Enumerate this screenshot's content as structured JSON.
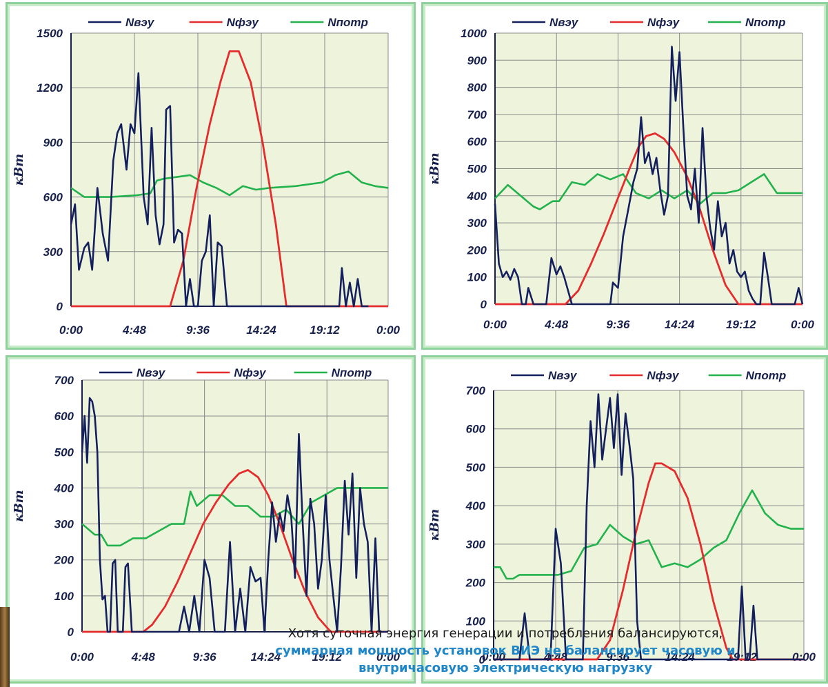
{
  "colors": {
    "nveu": "#14205e",
    "nfeu": "#e52b2b",
    "npotr": "#22b24c",
    "plot_bg": "#eef3dc",
    "grid": "#8a8a8a"
  },
  "legend": {
    "nveu": "Nвэу",
    "nfeu": "Nфэу",
    "npotr": "Nпотр"
  },
  "caption": {
    "line1": "Хотя суточная энергия генерации и потребления балансируются,",
    "line2": "суммарная мощность установок ВИЭ не балансирует часовую и",
    "line3": "внутричасовую электрическую нагрузку"
  },
  "chart_data": [
    {
      "type": "line",
      "ylabel": "кВт",
      "ylim": [
        0,
        1500
      ],
      "yticks": [
        "0",
        "300",
        "600",
        "900",
        "1200",
        "1500"
      ],
      "xlim": [
        0,
        24
      ],
      "xticks": [
        "0:00",
        "4:48",
        "9:36",
        "14:24",
        "19:12",
        "0:00"
      ],
      "grid": true,
      "legend_position": "top",
      "series": [
        {
          "name": "Nвэу",
          "x": [
            0,
            0.3,
            0.6,
            1,
            1.3,
            1.6,
            2,
            2.4,
            2.8,
            3.2,
            3.5,
            3.8,
            4.2,
            4.5,
            4.8,
            5.1,
            5.5,
            5.8,
            6.1,
            6.4,
            6.7,
            7,
            7.2,
            7.5,
            7.8,
            8.1,
            8.4,
            8.7,
            9,
            9.3,
            9.6,
            9.9,
            10.2,
            10.5,
            10.8,
            11.1,
            11.4,
            11.8,
            12.1,
            12.4,
            12.7,
            13,
            13.3,
            13.6,
            13.9,
            14.2,
            14.5,
            14.8,
            15.1,
            15.4,
            15.7,
            16,
            20.3,
            20.5,
            20.8,
            21.1,
            21.4,
            21.7,
            22,
            22.3,
            22.5
          ],
          "y": [
            450,
            560,
            200,
            320,
            350,
            200,
            650,
            400,
            250,
            800,
            950,
            1000,
            750,
            1000,
            950,
            1280,
            600,
            450,
            980,
            500,
            340,
            450,
            1080,
            1100,
            350,
            420,
            400,
            0,
            150,
            0,
            0,
            250,
            300,
            500,
            0,
            350,
            330,
            0,
            0,
            0,
            0,
            0,
            0,
            0,
            0,
            0,
            0,
            0,
            0,
            0,
            0,
            0,
            0,
            210,
            0,
            130,
            0,
            150,
            0,
            0,
            0
          ]
        },
        {
          "name": "Nфэу",
          "x": [
            0,
            7.5,
            8.5,
            9.5,
            10.5,
            11.3,
            12,
            12.7,
            13.6,
            14.5,
            15.5,
            16.3,
            17,
            24
          ],
          "y": [
            0,
            0,
            250,
            650,
            1000,
            1230,
            1400,
            1400,
            1230,
            900,
            450,
            0,
            0,
            0
          ]
        },
        {
          "name": "Nпотр",
          "x": [
            0,
            1,
            3,
            5,
            6,
            6.5,
            7,
            9,
            10,
            11,
            12,
            13,
            14,
            15,
            17,
            19,
            20,
            21,
            22,
            23,
            24
          ],
          "y": [
            650,
            600,
            600,
            610,
            620,
            690,
            700,
            720,
            680,
            650,
            610,
            660,
            640,
            650,
            660,
            680,
            720,
            740,
            680,
            660,
            650
          ]
        }
      ]
    },
    {
      "type": "line",
      "ylabel": "кВт",
      "ylim": [
        0,
        1000
      ],
      "yticks": [
        "0",
        "100",
        "200",
        "300",
        "400",
        "500",
        "600",
        "700",
        "800",
        "900",
        "1000"
      ],
      "xlim": [
        0,
        24
      ],
      "xticks": [
        "0:00",
        "4:48",
        "9:36",
        "14:24",
        "19:12",
        "0:00"
      ],
      "grid": true,
      "legend_position": "top",
      "series": [
        {
          "name": "Nвэу",
          "x": [
            0,
            0.3,
            0.6,
            0.9,
            1.2,
            1.5,
            1.8,
            2.1,
            2.4,
            2.6,
            3,
            3.3,
            3.6,
            4,
            4.4,
            4.8,
            5.1,
            5.4,
            6,
            6.3,
            6.6,
            7,
            7.5,
            8,
            8.5,
            9,
            9.2,
            9.6,
            10,
            10.4,
            10.8,
            11.1,
            11.4,
            11.7,
            12,
            12.3,
            12.6,
            12.9,
            13.2,
            13.5,
            13.8,
            14.1,
            14.4,
            14.7,
            15,
            15.3,
            15.6,
            15.9,
            16.2,
            16.5,
            16.8,
            17.1,
            17.4,
            17.7,
            18,
            18.3,
            18.6,
            18.9,
            19.2,
            19.5,
            19.8,
            20.1,
            20.4,
            20.7,
            21,
            21.3,
            21.6,
            21.9,
            22.2,
            22.5,
            22.8,
            23.1,
            23.4,
            23.7,
            24
          ],
          "y": [
            370,
            150,
            100,
            120,
            90,
            130,
            100,
            0,
            0,
            60,
            0,
            0,
            0,
            0,
            170,
            110,
            140,
            100,
            0,
            0,
            0,
            0,
            0,
            0,
            0,
            0,
            80,
            60,
            250,
            350,
            450,
            500,
            690,
            520,
            560,
            480,
            540,
            420,
            330,
            400,
            950,
            750,
            930,
            650,
            400,
            350,
            500,
            300,
            650,
            400,
            280,
            200,
            380,
            250,
            300,
            150,
            200,
            120,
            100,
            120,
            50,
            20,
            0,
            0,
            190,
            100,
            0,
            0,
            0,
            0,
            0,
            0,
            0,
            60,
            0
          ]
        },
        {
          "name": "Nфэу",
          "x": [
            0,
            5.5,
            6.5,
            7.5,
            8.5,
            9.5,
            10.5,
            11.2,
            11.8,
            12.5,
            13.2,
            14,
            15,
            16,
            17,
            18,
            19,
            24
          ],
          "y": [
            0,
            0,
            50,
            150,
            260,
            380,
            500,
            580,
            620,
            630,
            610,
            560,
            470,
            350,
            200,
            70,
            0,
            0
          ]
        },
        {
          "name": "Nпотр",
          "x": [
            0,
            1,
            3,
            3.5,
            4.5,
            5,
            6,
            7,
            8,
            9,
            10,
            11,
            12,
            13,
            14,
            15,
            16,
            17,
            18,
            19,
            20,
            21,
            22,
            23,
            24
          ],
          "y": [
            390,
            440,
            360,
            350,
            380,
            380,
            450,
            440,
            480,
            460,
            480,
            410,
            390,
            420,
            390,
            420,
            370,
            410,
            410,
            420,
            450,
            480,
            410,
            410,
            410
          ]
        }
      ]
    },
    {
      "type": "line",
      "ylabel": "кВт",
      "ylim": [
        0,
        700
      ],
      "yticks": [
        "0",
        "100",
        "200",
        "300",
        "400",
        "500",
        "600",
        "700"
      ],
      "xlim": [
        0,
        24
      ],
      "xticks": [
        "0:00",
        "4:48",
        "9:36",
        "14:24",
        "19:12",
        "0:00"
      ],
      "grid": true,
      "legend_position": "top",
      "series": [
        {
          "name": "Nвэу",
          "x": [
            0,
            0.2,
            0.4,
            0.6,
            0.8,
            1,
            1.2,
            1.4,
            1.6,
            1.8,
            2,
            2.2,
            2.4,
            2.6,
            2.8,
            3,
            3.2,
            3.4,
            3.6,
            3.9,
            4.2,
            4.5,
            4.8,
            5.2,
            5.6,
            6,
            6.4,
            6.8,
            7.2,
            7.6,
            8,
            8.4,
            8.8,
            9.2,
            9.6,
            10,
            10.4,
            10.8,
            11.2,
            11.6,
            12,
            12.4,
            12.8,
            13.2,
            13.6,
            14,
            14.3,
            14.6,
            14.9,
            15.2,
            15.5,
            15.8,
            16.1,
            16.4,
            16.7,
            17,
            17.3,
            17.6,
            17.9,
            18.2,
            18.5,
            18.8,
            19.1,
            19.4,
            19.7,
            20,
            20.3,
            20.6,
            20.9,
            21.2,
            21.5,
            21.8,
            22.1,
            22.4,
            22.7,
            23,
            23.3,
            23.6,
            24
          ],
          "y": [
            500,
            600,
            470,
            650,
            640,
            600,
            500,
            200,
            90,
            100,
            0,
            0,
            190,
            200,
            0,
            0,
            0,
            180,
            190,
            0,
            0,
            0,
            0,
            0,
            0,
            0,
            0,
            0,
            0,
            0,
            70,
            0,
            100,
            0,
            200,
            150,
            0,
            0,
            0,
            250,
            0,
            120,
            0,
            180,
            140,
            150,
            0,
            200,
            360,
            250,
            330,
            280,
            380,
            320,
            150,
            550,
            300,
            100,
            370,
            300,
            120,
            200,
            380,
            200,
            100,
            0,
            180,
            420,
            270,
            440,
            150,
            400,
            300,
            250,
            0,
            260,
            0,
            0,
            0
          ]
        },
        {
          "name": "Nфэу",
          "x": [
            0,
            4.8,
            5.5,
            6.5,
            7.5,
            8.5,
            9.5,
            10.5,
            11.5,
            12.3,
            13,
            13.8,
            14.6,
            15.5,
            16.5,
            17.5,
            18.5,
            19.5,
            24
          ],
          "y": [
            0,
            0,
            20,
            70,
            140,
            220,
            300,
            360,
            410,
            440,
            450,
            430,
            380,
            300,
            200,
            110,
            40,
            0,
            0
          ]
        },
        {
          "name": "Nпотр",
          "x": [
            0,
            1,
            1.5,
            2,
            3,
            4,
            5,
            6,
            7,
            8,
            8.5,
            9,
            10,
            11,
            12,
            13,
            14,
            15,
            16,
            17,
            18,
            19,
            20,
            21,
            22,
            23,
            24
          ],
          "y": [
            300,
            270,
            270,
            240,
            240,
            260,
            260,
            280,
            300,
            300,
            390,
            350,
            380,
            380,
            350,
            350,
            320,
            320,
            340,
            300,
            360,
            380,
            400,
            400,
            400,
            400,
            400
          ]
        }
      ]
    },
    {
      "type": "line",
      "ylabel": "кВт",
      "ylim": [
        0,
        700
      ],
      "yticks": [
        "0",
        "100",
        "200",
        "300",
        "400",
        "500",
        "600",
        "700"
      ],
      "xlim": [
        0,
        24
      ],
      "xticks": [
        "0:00",
        "4:48",
        "9:36",
        "14:24",
        "19:12",
        "0:00"
      ],
      "grid": true,
      "legend_position": "top",
      "series": [
        {
          "name": "Nвэу",
          "x": [
            0,
            0.4,
            0.8,
            1.2,
            1.6,
            2,
            2.4,
            2.8,
            3.2,
            3.6,
            4,
            4.4,
            4.8,
            5.2,
            5.6,
            6,
            6.3,
            6.6,
            6.9,
            7.2,
            7.5,
            7.8,
            8.1,
            8.4,
            8.7,
            9,
            9.3,
            9.6,
            9.9,
            10.2,
            10.5,
            10.8,
            11.1,
            11.4,
            11.7,
            12,
            12.3,
            12.6,
            12.9,
            13.2,
            13.5,
            13.8,
            14.1,
            14.4,
            14.7,
            15,
            15.3,
            15.6,
            15.9,
            16.2,
            16.5,
            16.8,
            17.1,
            17.4,
            17.7,
            18,
            18.3,
            18.6,
            18.9,
            19.2,
            19.5,
            19.8,
            20.1,
            20.4,
            24
          ],
          "y": [
            0,
            0,
            0,
            0,
            0,
            0,
            120,
            0,
            0,
            0,
            0,
            0,
            340,
            250,
            0,
            0,
            0,
            0,
            0,
            400,
            620,
            500,
            690,
            520,
            600,
            680,
            550,
            690,
            480,
            640,
            560,
            470,
            100,
            0,
            0,
            0,
            0,
            0,
            0,
            0,
            0,
            0,
            0,
            0,
            0,
            0,
            0,
            0,
            0,
            0,
            0,
            0,
            0,
            0,
            0,
            0,
            0,
            0,
            0,
            190,
            0,
            0,
            140,
            0,
            0
          ]
        },
        {
          "name": "Nфэу",
          "x": [
            0,
            8,
            9,
            10,
            11,
            12,
            12.5,
            13,
            14,
            15,
            16,
            17,
            18,
            18.5,
            24
          ],
          "y": [
            0,
            0,
            50,
            180,
            330,
            460,
            510,
            510,
            490,
            420,
            300,
            150,
            30,
            0,
            0
          ]
        },
        {
          "name": "Nпотр",
          "x": [
            0,
            0.5,
            1,
            1.5,
            2,
            5,
            6,
            7,
            8,
            9,
            10,
            11,
            12,
            13,
            14,
            15,
            16,
            17,
            18,
            19,
            20,
            21,
            22,
            23,
            24
          ],
          "y": [
            240,
            240,
            210,
            210,
            220,
            220,
            230,
            290,
            300,
            350,
            320,
            300,
            310,
            240,
            250,
            240,
            260,
            290,
            310,
            380,
            440,
            380,
            350,
            340,
            340
          ]
        }
      ]
    }
  ]
}
